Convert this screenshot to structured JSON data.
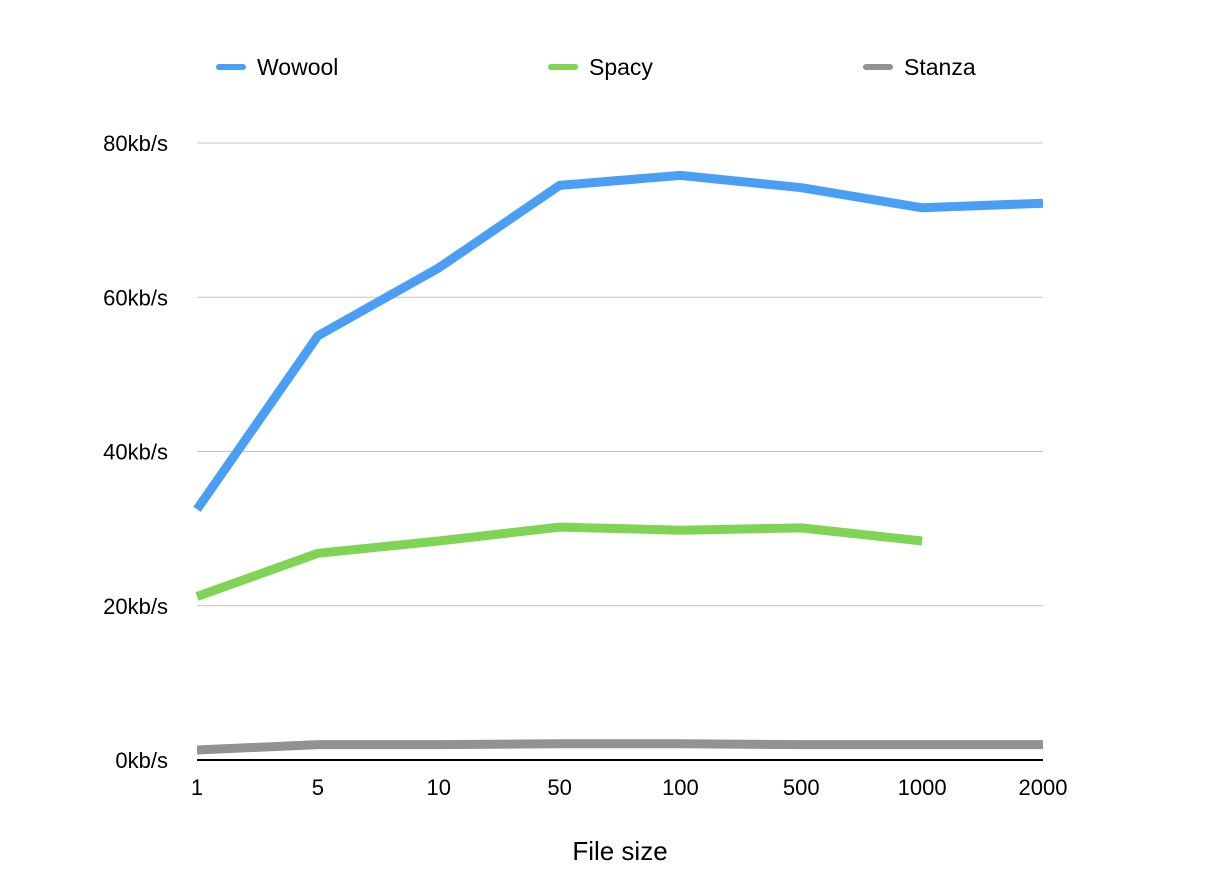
{
  "chart_data": {
    "type": "line",
    "title": "",
    "xlabel": "File size",
    "ylabel": "",
    "categories": [
      "1",
      "5",
      "10",
      "50",
      "100",
      "500",
      "1000",
      "2000"
    ],
    "y_ticks": [
      {
        "value": 0,
        "label": "0kb/s"
      },
      {
        "value": 20,
        "label": "20kb/s"
      },
      {
        "value": 40,
        "label": "40kb/s"
      },
      {
        "value": 60,
        "label": "60kb/s"
      },
      {
        "value": 80,
        "label": "80kb/s"
      }
    ],
    "ylim": [
      0,
      80
    ],
    "grid": true,
    "legend_position": "top",
    "series": [
      {
        "name": "Wowool",
        "color": "#4a9ff5",
        "values": [
          32.5,
          55,
          63.8,
          74.5,
          75.8,
          74.2,
          71.6,
          72.2
        ]
      },
      {
        "name": "Spacy",
        "color": "#7fd455",
        "values": [
          21.2,
          26.8,
          28.4,
          30.2,
          29.8,
          30.1,
          28.4,
          null
        ]
      },
      {
        "name": "Stanza",
        "color": "#929292",
        "values": [
          1.3,
          2.0,
          2.0,
          2.1,
          2.1,
          2.0,
          2.0,
          2.0
        ]
      }
    ]
  }
}
